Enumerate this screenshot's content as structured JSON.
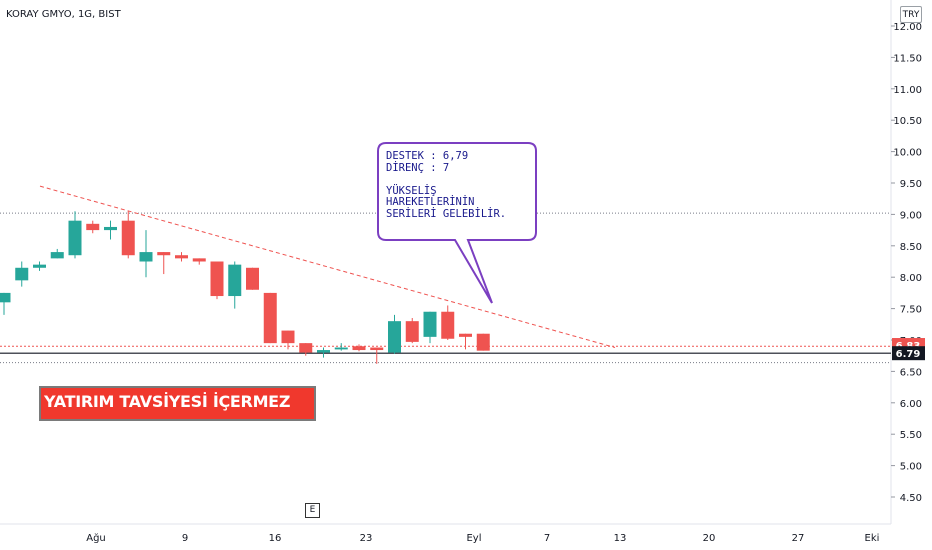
{
  "header": {
    "symbol": "KORAY GMYO, 1G, BIST",
    "currency": "TRY"
  },
  "annotation": {
    "text": "DESTEK : 6,79\nDİRENÇ :  7\n\nYÜKSELİŞ\nHAREKETLERİNİN\nSERİLERİ GELEBİLİR."
  },
  "banner": {
    "text": "YATIRIM TAVSİYESİ İÇERMEZ"
  },
  "event_badge": {
    "label": "E"
  },
  "colors": {
    "up": "#26a69a",
    "down": "#ef5350",
    "trend": "#ef5350",
    "note_border": "#7b3fc1",
    "banner": "#f0382d"
  },
  "chart_data": {
    "type": "candlestick",
    "ylim": [
      4.25,
      12.2
    ],
    "y_ticks": [
      "4.50",
      "5.00",
      "5.50",
      "6.00",
      "6.50",
      "7.00",
      "7.50",
      "8.00",
      "8.50",
      "9.00",
      "9.50",
      "10.00",
      "10.50",
      "11.00",
      "11.50",
      "12.00"
    ],
    "x_labels": [
      "Ağu",
      "9",
      "16",
      "23",
      "Eyl",
      "7",
      "13",
      "20",
      "27",
      "Eki"
    ],
    "candles": [
      {
        "o": 7.6,
        "h": 7.75,
        "l": 7.4,
        "c": 7.75
      },
      {
        "o": 7.95,
        "h": 8.25,
        "l": 7.85,
        "c": 8.15
      },
      {
        "o": 8.15,
        "h": 8.25,
        "l": 8.1,
        "c": 8.2
      },
      {
        "o": 8.3,
        "h": 8.45,
        "l": 8.3,
        "c": 8.4
      },
      {
        "o": 8.35,
        "h": 9.05,
        "l": 8.3,
        "c": 8.9
      },
      {
        "o": 8.85,
        "h": 8.9,
        "l": 8.7,
        "c": 8.75
      },
      {
        "o": 8.75,
        "h": 8.9,
        "l": 8.6,
        "c": 8.8
      },
      {
        "o": 8.9,
        "h": 9.05,
        "l": 8.3,
        "c": 8.35
      },
      {
        "o": 8.25,
        "h": 8.75,
        "l": 8.0,
        "c": 8.4
      },
      {
        "o": 8.4,
        "h": 8.4,
        "l": 8.05,
        "c": 8.35
      },
      {
        "o": 8.35,
        "h": 8.4,
        "l": 8.25,
        "c": 8.3
      },
      {
        "o": 8.3,
        "h": 8.3,
        "l": 8.2,
        "c": 8.25
      },
      {
        "o": 8.25,
        "h": 8.25,
        "l": 7.65,
        "c": 7.7
      },
      {
        "o": 7.7,
        "h": 8.25,
        "l": 7.5,
        "c": 8.2
      },
      {
        "o": 8.15,
        "h": 8.15,
        "l": 7.8,
        "c": 7.8
      },
      {
        "o": 7.75,
        "h": 7.75,
        "l": 6.95,
        "c": 6.95
      },
      {
        "o": 7.15,
        "h": 7.15,
        "l": 6.85,
        "c": 6.95
      },
      {
        "o": 6.95,
        "h": 6.95,
        "l": 6.75,
        "c": 6.8
      },
      {
        "o": 6.8,
        "h": 6.88,
        "l": 6.72,
        "c": 6.84
      },
      {
        "o": 6.85,
        "h": 6.95,
        "l": 6.83,
        "c": 6.88
      },
      {
        "o": 6.9,
        "h": 6.93,
        "l": 6.82,
        "c": 6.84
      },
      {
        "o": 6.88,
        "h": 6.88,
        "l": 6.62,
        "c": 6.84
      },
      {
        "o": 6.8,
        "h": 7.4,
        "l": 6.78,
        "c": 7.3
      },
      {
        "o": 7.3,
        "h": 7.35,
        "l": 6.95,
        "c": 6.97
      },
      {
        "o": 7.05,
        "h": 7.45,
        "l": 6.95,
        "c": 7.45
      },
      {
        "o": 7.45,
        "h": 7.55,
        "l": 7.0,
        "c": 7.02
      },
      {
        "o": 7.1,
        "h": 7.1,
        "l": 6.85,
        "c": 7.05
      },
      {
        "o": 7.1,
        "h": 7.1,
        "l": 6.83,
        "c": 6.83
      }
    ],
    "last_price": "6.83",
    "support_level": "6.79",
    "support": 6.79,
    "resistance_line": {
      "from": 9.45,
      "to": 6.88
    }
  }
}
